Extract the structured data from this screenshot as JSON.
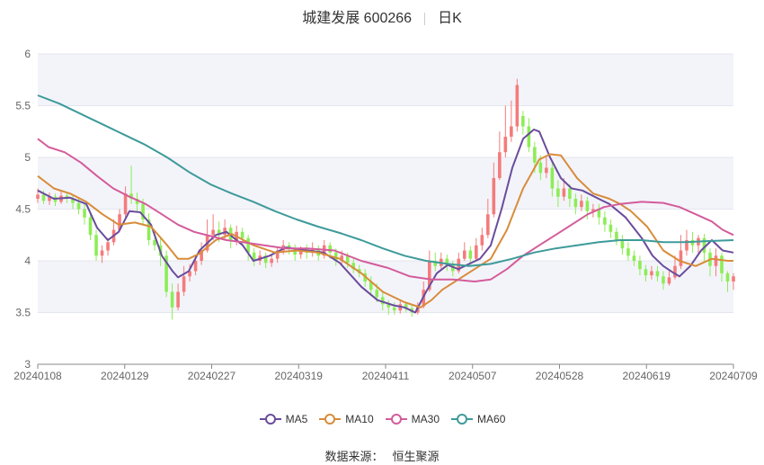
{
  "title": {
    "name": "城建发展 600266",
    "period": "日K"
  },
  "source": {
    "label": "数据来源：",
    "value": "恒生聚源"
  },
  "chart_data": {
    "type": "candlestick",
    "ylim": [
      3,
      6
    ],
    "yticks": [
      "3",
      "3.5",
      "4",
      "4.5",
      "5",
      "5.5",
      "6"
    ],
    "xticks": [
      "20240108",
      "20240129",
      "20240227",
      "20240319",
      "20240411",
      "20240507",
      "20240528",
      "20240619",
      "20240709"
    ],
    "n_bars": 120,
    "colors": {
      "up": "#f47b7b",
      "down": "#8ced55",
      "band": "#f3f4fa",
      "grid": "#e4e6ef",
      "axis": "#666666"
    },
    "candles": [
      [
        4.6,
        4.64,
        4.7,
        4.56
      ],
      [
        4.64,
        4.58,
        4.68,
        4.55
      ],
      [
        4.58,
        4.62,
        4.66,
        4.54
      ],
      [
        4.62,
        4.57,
        4.65,
        4.53
      ],
      [
        4.57,
        4.63,
        4.67,
        4.55
      ],
      [
        4.63,
        4.6,
        4.66,
        4.56
      ],
      [
        4.6,
        4.56,
        4.64,
        4.5
      ],
      [
        4.56,
        4.5,
        4.6,
        4.45
      ],
      [
        4.5,
        4.42,
        4.55,
        4.35
      ],
      [
        4.42,
        4.25,
        4.46,
        4.2
      ],
      [
        4.25,
        4.05,
        4.3,
        4.0
      ],
      [
        4.05,
        4.1,
        4.15,
        3.98
      ],
      [
        4.1,
        4.18,
        4.22,
        4.05
      ],
      [
        4.18,
        4.3,
        4.4,
        4.15
      ],
      [
        4.3,
        4.45,
        4.5,
        4.28
      ],
      [
        4.45,
        4.65,
        4.72,
        4.42
      ],
      [
        4.65,
        4.6,
        4.92,
        4.55
      ],
      [
        4.6,
        4.55,
        4.66,
        4.48
      ],
      [
        4.55,
        4.4,
        4.6,
        4.35
      ],
      [
        4.4,
        4.2,
        4.46,
        4.15
      ],
      [
        4.2,
        4.15,
        4.28,
        4.1
      ],
      [
        4.15,
        4.05,
        4.22,
        3.95
      ],
      [
        4.05,
        3.7,
        4.1,
        3.65
      ],
      [
        3.7,
        3.55,
        3.78,
        3.43
      ],
      [
        3.55,
        3.7,
        3.78,
        3.52
      ],
      [
        3.7,
        3.85,
        3.95,
        3.66
      ],
      [
        3.85,
        3.9,
        3.97,
        3.8
      ],
      [
        3.9,
        4.0,
        4.06,
        3.86
      ],
      [
        4.0,
        4.1,
        4.18,
        3.96
      ],
      [
        4.1,
        4.25,
        4.4,
        4.08
      ],
      [
        4.25,
        4.3,
        4.45,
        4.2
      ],
      [
        4.3,
        4.25,
        4.38,
        4.18
      ],
      [
        4.25,
        4.32,
        4.4,
        4.2
      ],
      [
        4.32,
        4.2,
        4.35,
        4.12
      ],
      [
        4.2,
        4.28,
        4.34,
        4.15
      ],
      [
        4.28,
        4.22,
        4.32,
        4.15
      ],
      [
        4.22,
        4.08,
        4.25,
        4.0
      ],
      [
        4.08,
        4.0,
        4.12,
        3.95
      ],
      [
        4.0,
        4.05,
        4.1,
        3.96
      ],
      [
        4.05,
        3.98,
        4.08,
        3.93
      ],
      [
        3.98,
        4.02,
        4.06,
        3.94
      ],
      [
        4.02,
        4.1,
        4.14,
        3.98
      ],
      [
        4.1,
        4.15,
        4.2,
        4.06
      ],
      [
        4.15,
        4.12,
        4.18,
        4.06
      ],
      [
        4.12,
        4.06,
        4.16,
        4.0
      ],
      [
        4.06,
        4.1,
        4.14,
        4.02
      ],
      [
        4.1,
        4.08,
        4.16,
        4.02
      ],
      [
        4.08,
        4.12,
        4.18,
        4.04
      ],
      [
        4.12,
        4.05,
        4.15,
        4.0
      ],
      [
        4.05,
        4.15,
        4.2,
        4.02
      ],
      [
        4.15,
        4.08,
        4.18,
        4.02
      ],
      [
        4.08,
        4.0,
        4.12,
        3.95
      ],
      [
        4.0,
        4.05,
        4.1,
        3.96
      ],
      [
        4.05,
        3.98,
        4.08,
        3.93
      ],
      [
        3.98,
        3.92,
        4.02,
        3.88
      ],
      [
        3.92,
        3.88,
        3.96,
        3.84
      ],
      [
        3.88,
        3.8,
        3.92,
        3.75
      ],
      [
        3.8,
        3.72,
        3.85,
        3.66
      ],
      [
        3.72,
        3.65,
        3.78,
        3.6
      ],
      [
        3.65,
        3.58,
        3.7,
        3.52
      ],
      [
        3.58,
        3.55,
        3.62,
        3.48
      ],
      [
        3.55,
        3.52,
        3.6,
        3.48
      ],
      [
        3.52,
        3.58,
        3.62,
        3.49
      ],
      [
        3.58,
        3.54,
        3.6,
        3.5
      ],
      [
        3.54,
        3.5,
        3.58,
        3.46
      ],
      [
        3.5,
        3.56,
        3.6,
        3.48
      ],
      [
        3.56,
        3.72,
        3.8,
        3.54
      ],
      [
        3.72,
        4.0,
        4.1,
        3.7
      ],
      [
        4.0,
        3.95,
        4.08,
        3.9
      ],
      [
        3.95,
        4.02,
        4.08,
        3.92
      ],
      [
        4.02,
        3.96,
        4.06,
        3.9
      ],
      [
        3.96,
        3.9,
        4.0,
        3.85
      ],
      [
        3.9,
        4.02,
        4.08,
        3.88
      ],
      [
        4.02,
        4.1,
        4.18,
        4.0
      ],
      [
        4.1,
        4.02,
        4.14,
        3.96
      ],
      [
        4.02,
        4.15,
        4.22,
        4.0
      ],
      [
        4.15,
        4.25,
        4.32,
        4.1
      ],
      [
        4.25,
        4.45,
        4.6,
        4.22
      ],
      [
        4.45,
        4.8,
        4.95,
        4.42
      ],
      [
        4.8,
        5.05,
        5.25,
        4.78
      ],
      [
        5.05,
        5.2,
        5.5,
        5.0
      ],
      [
        5.2,
        5.3,
        5.55,
        5.15
      ],
      [
        5.3,
        5.7,
        5.76,
        5.25
      ],
      [
        5.4,
        5.3,
        5.45,
        5.22
      ],
      [
        5.3,
        5.1,
        5.38,
        5.05
      ],
      [
        5.1,
        4.95,
        5.15,
        4.85
      ],
      [
        4.95,
        4.85,
        5.02,
        4.78
      ],
      [
        4.85,
        4.9,
        5.0,
        4.8
      ],
      [
        4.9,
        4.7,
        4.95,
        4.62
      ],
      [
        4.7,
        4.62,
        4.78,
        4.52
      ],
      [
        4.62,
        4.7,
        4.8,
        4.58
      ],
      [
        4.7,
        4.6,
        4.74,
        4.52
      ],
      [
        4.6,
        4.52,
        4.65,
        4.45
      ],
      [
        4.52,
        4.58,
        4.64,
        4.48
      ],
      [
        4.58,
        4.48,
        4.62,
        4.4
      ],
      [
        4.48,
        4.5,
        4.55,
        4.42
      ],
      [
        4.5,
        4.42,
        4.55,
        4.35
      ],
      [
        4.42,
        4.35,
        4.48,
        4.28
      ],
      [
        4.35,
        4.28,
        4.4,
        4.22
      ],
      [
        4.28,
        4.2,
        4.32,
        4.15
      ],
      [
        4.2,
        4.12,
        4.25,
        4.06
      ],
      [
        4.12,
        4.05,
        4.18,
        4.0
      ],
      [
        4.05,
        4.0,
        4.1,
        3.95
      ],
      [
        4.0,
        3.92,
        4.05,
        3.86
      ],
      [
        3.92,
        3.86,
        3.96,
        3.8
      ],
      [
        3.86,
        3.9,
        3.95,
        3.82
      ],
      [
        3.9,
        3.85,
        3.95,
        3.8
      ],
      [
        3.85,
        3.78,
        3.9,
        3.72
      ],
      [
        3.78,
        3.84,
        3.9,
        3.76
      ],
      [
        3.84,
        3.95,
        4.05,
        3.82
      ],
      [
        3.95,
        4.1,
        4.25,
        3.92
      ],
      [
        4.1,
        4.2,
        4.3,
        4.05
      ],
      [
        4.2,
        4.15,
        4.28,
        4.08
      ],
      [
        4.15,
        4.22,
        4.25,
        4.05
      ],
      [
        4.22,
        4.08,
        4.26,
        3.98
      ],
      [
        4.08,
        3.95,
        4.12,
        3.85
      ],
      [
        3.95,
        4.05,
        4.12,
        3.85
      ],
      [
        4.05,
        3.88,
        4.08,
        3.8
      ],
      [
        3.88,
        3.8,
        3.9,
        3.7
      ],
      [
        3.8,
        3.85,
        3.88,
        3.72
      ]
    ],
    "series": [
      {
        "name": "MA5",
        "color": "#6a4c9c",
        "points": [
          [
            0,
            4.68
          ],
          [
            3,
            4.6
          ],
          [
            6,
            4.61
          ],
          [
            9,
            4.55
          ],
          [
            11,
            4.32
          ],
          [
            13,
            4.2
          ],
          [
            15,
            4.28
          ],
          [
            17,
            4.48
          ],
          [
            19,
            4.47
          ],
          [
            21,
            4.35
          ],
          [
            23,
            4.05
          ],
          [
            25,
            3.9
          ],
          [
            26,
            3.84
          ],
          [
            28,
            3.9
          ],
          [
            30,
            4.1
          ],
          [
            33,
            4.25
          ],
          [
            35,
            4.28
          ],
          [
            38,
            4.15
          ],
          [
            40,
            4.0
          ],
          [
            43,
            4.05
          ],
          [
            46,
            4.13
          ],
          [
            50,
            4.1
          ],
          [
            53,
            4.08
          ],
          [
            56,
            3.98
          ],
          [
            60,
            3.75
          ],
          [
            63,
            3.62
          ],
          [
            66,
            3.57
          ],
          [
            68,
            3.55
          ],
          [
            70,
            3.5
          ],
          [
            72,
            3.7
          ],
          [
            74,
            3.88
          ],
          [
            76,
            3.96
          ],
          [
            78,
            3.92
          ],
          [
            80,
            3.97
          ],
          [
            82,
            4.02
          ],
          [
            84,
            4.15
          ],
          [
            86,
            4.5
          ],
          [
            88,
            4.9
          ],
          [
            90,
            5.18
          ],
          [
            92,
            5.27
          ],
          [
            93,
            5.25
          ],
          [
            95,
            5.0
          ],
          [
            97,
            4.8
          ],
          [
            99,
            4.7
          ],
          [
            101,
            4.68
          ],
          [
            104,
            4.6
          ],
          [
            106,
            4.55
          ],
          [
            109,
            4.42
          ],
          [
            112,
            4.22
          ],
          [
            114,
            4.05
          ],
          [
            116,
            3.95
          ],
          [
            118,
            3.88
          ],
          [
            119,
            3.85
          ],
          [
            121,
            3.95
          ],
          [
            123,
            4.1
          ],
          [
            125,
            4.2
          ],
          [
            127,
            4.1
          ],
          [
            129,
            4.08
          ]
        ]
      },
      {
        "name": "MA10",
        "color": "#d88c3a",
        "points": [
          [
            0,
            4.82
          ],
          [
            3,
            4.7
          ],
          [
            6,
            4.65
          ],
          [
            9,
            4.57
          ],
          [
            12,
            4.45
          ],
          [
            15,
            4.35
          ],
          [
            18,
            4.37
          ],
          [
            21,
            4.33
          ],
          [
            24,
            4.15
          ],
          [
            26,
            4.02
          ],
          [
            28,
            4.02
          ],
          [
            30,
            4.07
          ],
          [
            33,
            4.2
          ],
          [
            36,
            4.26
          ],
          [
            40,
            4.15
          ],
          [
            44,
            4.08
          ],
          [
            48,
            4.1
          ],
          [
            52,
            4.08
          ],
          [
            56,
            4.02
          ],
          [
            60,
            3.88
          ],
          [
            64,
            3.7
          ],
          [
            68,
            3.6
          ],
          [
            71,
            3.55
          ],
          [
            73,
            3.62
          ],
          [
            75,
            3.72
          ],
          [
            78,
            3.82
          ],
          [
            81,
            3.92
          ],
          [
            84,
            4.02
          ],
          [
            87,
            4.3
          ],
          [
            90,
            4.7
          ],
          [
            93,
            4.98
          ],
          [
            95,
            5.03
          ],
          [
            97,
            5.02
          ],
          [
            100,
            4.8
          ],
          [
            103,
            4.65
          ],
          [
            106,
            4.6
          ],
          [
            108,
            4.55
          ],
          [
            110,
            4.48
          ],
          [
            113,
            4.33
          ],
          [
            116,
            4.1
          ],
          [
            119,
            4.0
          ],
          [
            122,
            3.95
          ],
          [
            125,
            4.02
          ],
          [
            128,
            4.0
          ],
          [
            129,
            4.0
          ]
        ]
      },
      {
        "name": "MA30",
        "color": "#d45c9b",
        "points": [
          [
            0,
            5.18
          ],
          [
            2,
            5.1
          ],
          [
            5,
            5.05
          ],
          [
            8,
            4.95
          ],
          [
            11,
            4.82
          ],
          [
            14,
            4.7
          ],
          [
            17,
            4.62
          ],
          [
            20,
            4.55
          ],
          [
            23,
            4.45
          ],
          [
            26,
            4.35
          ],
          [
            29,
            4.28
          ],
          [
            32,
            4.24
          ],
          [
            35,
            4.2
          ],
          [
            38,
            4.18
          ],
          [
            42,
            4.15
          ],
          [
            46,
            4.12
          ],
          [
            50,
            4.12
          ],
          [
            55,
            4.1
          ],
          [
            60,
            4.0
          ],
          [
            65,
            3.93
          ],
          [
            69,
            3.85
          ],
          [
            73,
            3.82
          ],
          [
            77,
            3.82
          ],
          [
            81,
            3.8
          ],
          [
            84,
            3.82
          ],
          [
            87,
            3.92
          ],
          [
            90,
            4.05
          ],
          [
            93,
            4.15
          ],
          [
            96,
            4.25
          ],
          [
            99,
            4.35
          ],
          [
            102,
            4.45
          ],
          [
            105,
            4.52
          ],
          [
            108,
            4.55
          ],
          [
            112,
            4.57
          ],
          [
            116,
            4.56
          ],
          [
            119,
            4.52
          ],
          [
            122,
            4.45
          ],
          [
            125,
            4.38
          ],
          [
            127,
            4.3
          ],
          [
            129,
            4.25
          ]
        ]
      },
      {
        "name": "MA60",
        "color": "#3e9a9a",
        "points": [
          [
            0,
            5.6
          ],
          [
            4,
            5.52
          ],
          [
            8,
            5.42
          ],
          [
            12,
            5.32
          ],
          [
            16,
            5.22
          ],
          [
            20,
            5.12
          ],
          [
            24,
            5.0
          ],
          [
            28,
            4.86
          ],
          [
            32,
            4.74
          ],
          [
            36,
            4.65
          ],
          [
            40,
            4.57
          ],
          [
            44,
            4.48
          ],
          [
            48,
            4.4
          ],
          [
            52,
            4.33
          ],
          [
            56,
            4.27
          ],
          [
            60,
            4.2
          ],
          [
            64,
            4.12
          ],
          [
            68,
            4.05
          ],
          [
            72,
            4.0
          ],
          [
            76,
            3.97
          ],
          [
            80,
            3.95
          ],
          [
            84,
            3.97
          ],
          [
            88,
            4.02
          ],
          [
            92,
            4.08
          ],
          [
            96,
            4.12
          ],
          [
            100,
            4.15
          ],
          [
            104,
            4.18
          ],
          [
            108,
            4.2
          ],
          [
            112,
            4.2
          ],
          [
            116,
            4.18
          ],
          [
            120,
            4.18
          ],
          [
            124,
            4.19
          ],
          [
            129,
            4.2
          ]
        ]
      }
    ]
  }
}
